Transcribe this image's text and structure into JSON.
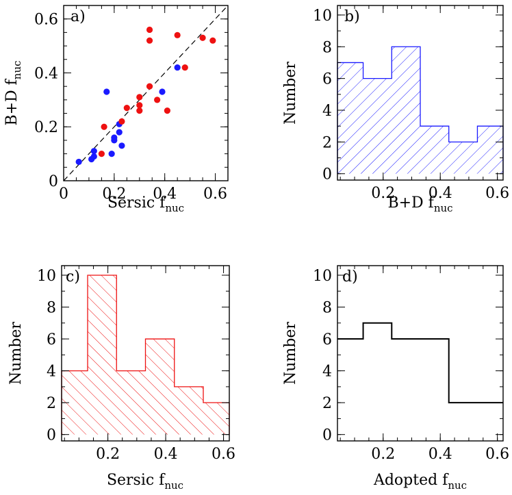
{
  "colors": {
    "blue": "#1a1aff",
    "red": "#ee1111",
    "black": "#000000",
    "dash": "#000000"
  },
  "chart_data": [
    {
      "id": "a",
      "type": "scatter",
      "panel_label": "a)",
      "xlabel_main": "Sersic f",
      "xlabel_sub": "nuc",
      "ylabel_main": "B+D f",
      "ylabel_sub": "nuc",
      "xlim": [
        0,
        0.65
      ],
      "ylim": [
        0,
        0.65
      ],
      "xticks": [
        0,
        0.2,
        0.4,
        0.6
      ],
      "xticklabels": [
        "0",
        "0.2",
        "0.4",
        "0.6"
      ],
      "yticks": [
        0,
        0.2,
        0.4,
        0.6
      ],
      "yticklabels": [
        "0",
        "0.2",
        "0.4",
        "0.6"
      ],
      "reference_line": "y = x (dashed)",
      "series": [
        {
          "color": "blue",
          "points": [
            [
              0.06,
              0.07
            ],
            [
              0.11,
              0.08
            ],
            [
              0.12,
              0.09
            ],
            [
              0.12,
              0.11
            ],
            [
              0.17,
              0.33
            ],
            [
              0.19,
              0.1
            ],
            [
              0.2,
              0.15
            ],
            [
              0.2,
              0.16
            ],
            [
              0.22,
              0.18
            ],
            [
              0.22,
              0.21
            ],
            [
              0.23,
              0.13
            ],
            [
              0.39,
              0.33
            ],
            [
              0.45,
              0.42
            ]
          ]
        },
        {
          "color": "red",
          "points": [
            [
              0.15,
              0.1
            ],
            [
              0.16,
              0.2
            ],
            [
              0.23,
              0.22
            ],
            [
              0.25,
              0.27
            ],
            [
              0.3,
              0.26
            ],
            [
              0.3,
              0.28
            ],
            [
              0.3,
              0.31
            ],
            [
              0.34,
              0.56
            ],
            [
              0.34,
              0.52
            ],
            [
              0.34,
              0.35
            ],
            [
              0.37,
              0.3
            ],
            [
              0.41,
              0.26
            ],
            [
              0.45,
              0.54
            ],
            [
              0.48,
              0.42
            ],
            [
              0.55,
              0.53
            ],
            [
              0.59,
              0.52
            ]
          ]
        }
      ]
    },
    {
      "id": "b",
      "type": "bar",
      "subtype": "step-histogram",
      "panel_label": "b)",
      "xlabel_main": "B+D f",
      "xlabel_sub": "nuc",
      "ylabel_main": "Number",
      "xlim": [
        0.04,
        0.62
      ],
      "ylim": [
        -0.4,
        10.6
      ],
      "xticks": [
        0.2,
        0.4,
        0.6
      ],
      "xticklabels": [
        "0.2",
        "0.4",
        "0.6"
      ],
      "yticks": [
        0,
        2,
        4,
        6,
        8,
        10
      ],
      "yticklabels": [
        "0",
        "2",
        "4",
        "6",
        "8",
        "10"
      ],
      "fill": "hatch-backslash",
      "color": "blue",
      "bin_edges": [
        0.04,
        0.13,
        0.23,
        0.33,
        0.43,
        0.53,
        0.62
      ],
      "values": [
        7,
        6,
        8,
        3,
        2,
        3
      ]
    },
    {
      "id": "c",
      "type": "bar",
      "subtype": "step-histogram",
      "panel_label": "c)",
      "xlabel_main": "Sersic f",
      "xlabel_sub": "nuc",
      "ylabel_main": "Number",
      "xlim": [
        0.04,
        0.62
      ],
      "ylim": [
        -0.4,
        10.6
      ],
      "xticks": [
        0.2,
        0.4,
        0.6
      ],
      "xticklabels": [
        "0.2",
        "0.4",
        "0.6"
      ],
      "yticks": [
        0,
        2,
        4,
        6,
        8,
        10
      ],
      "yticklabels": [
        "0",
        "2",
        "4",
        "6",
        "8",
        "10"
      ],
      "fill": "hatch-slash",
      "color": "red",
      "bin_edges": [
        0.04,
        0.13,
        0.23,
        0.33,
        0.43,
        0.53,
        0.62
      ],
      "values": [
        4,
        10,
        4,
        6,
        3,
        2
      ]
    },
    {
      "id": "d",
      "type": "bar",
      "subtype": "step-histogram",
      "panel_label": "d)",
      "xlabel_main": "Adopted f",
      "xlabel_sub": "nuc",
      "ylabel_main": "Number",
      "xlim": [
        0.04,
        0.62
      ],
      "ylim": [
        -0.4,
        10.6
      ],
      "xticks": [
        0.2,
        0.4,
        0.6
      ],
      "xticklabels": [
        "0.2",
        "0.4",
        "0.6"
      ],
      "yticks": [
        0,
        2,
        4,
        6,
        8,
        10
      ],
      "yticklabels": [
        "0",
        "2",
        "4",
        "6",
        "8",
        "10"
      ],
      "fill": "none",
      "color": "black",
      "bin_edges": [
        0.04,
        0.13,
        0.23,
        0.33,
        0.43,
        0.53,
        0.62
      ],
      "values": [
        6,
        7,
        6,
        6,
        2,
        2
      ]
    }
  ]
}
